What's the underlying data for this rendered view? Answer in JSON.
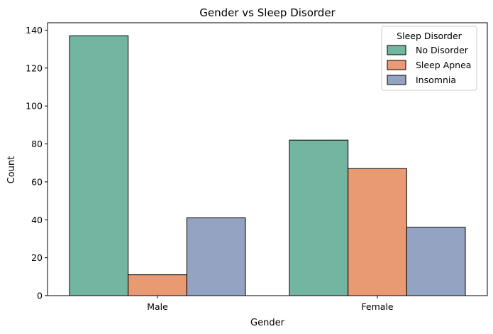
{
  "chart_data": {
    "type": "bar",
    "title": "Gender vs Sleep Disorder",
    "xlabel": "Gender",
    "ylabel": "Count",
    "categories": [
      "Male",
      "Female"
    ],
    "series": [
      {
        "name": "No Disorder",
        "values": [
          137,
          82
        ],
        "color": "#72b5a0"
      },
      {
        "name": "Sleep Apnea",
        "values": [
          11,
          67
        ],
        "color": "#e99a73"
      },
      {
        "name": "Insomnia",
        "values": [
          41,
          36
        ],
        "color": "#95a3c3"
      }
    ],
    "ylim": [
      0,
      143.9
    ],
    "yticks": [
      0,
      20,
      40,
      60,
      80,
      100,
      120,
      140
    ],
    "legend": {
      "title": "Sleep Disorder",
      "placement": "top-right"
    },
    "grid": false
  }
}
